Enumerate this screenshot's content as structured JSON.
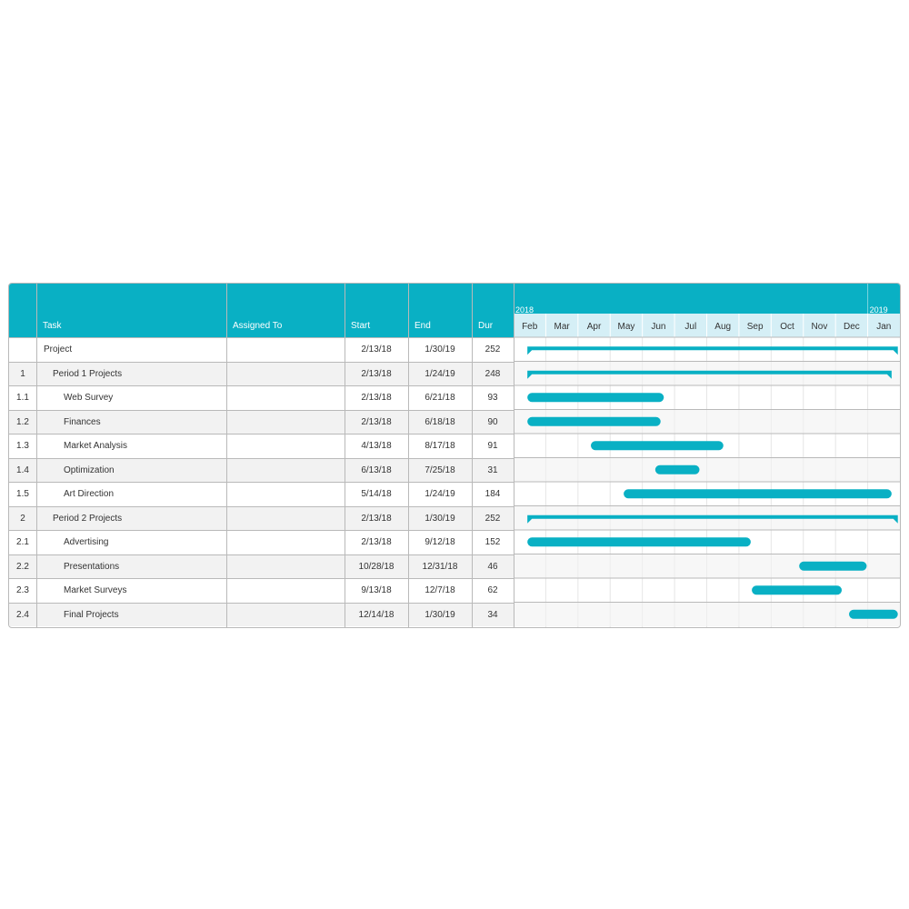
{
  "headers": {
    "num": "",
    "task": "Task",
    "assigned": "Assigned To",
    "start": "Start",
    "end": "End",
    "dur": "Dur"
  },
  "colors": {
    "accent": "#09b0c4",
    "month_band": "#d5eff6",
    "bar": "#09b0c4"
  },
  "chart_data": {
    "type": "gantt",
    "years": [
      {
        "label": "2018"
      },
      {
        "label": "2019"
      }
    ],
    "months": [
      "Feb",
      "Mar",
      "Apr",
      "May",
      "Jun",
      "Jul",
      "Aug",
      "Sep",
      "Oct",
      "Nov",
      "Dec",
      "Jan"
    ],
    "month_start_dates": [
      "2018-02-01",
      "2018-03-01",
      "2018-04-01",
      "2018-05-01",
      "2018-06-01",
      "2018-07-01",
      "2018-08-01",
      "2018-09-01",
      "2018-10-01",
      "2018-11-01",
      "2018-12-01",
      "2019-01-01"
    ],
    "axis_end_date": "2019-02-01",
    "tasks": [
      {
        "id": "",
        "name": "Project",
        "assigned": "",
        "start": "2/13/18",
        "end": "1/30/19",
        "dur": "252",
        "level": 0,
        "summary": true
      },
      {
        "id": "1",
        "name": "Period 1 Projects",
        "assigned": "",
        "start": "2/13/18",
        "end": "1/24/19",
        "dur": "248",
        "level": 1,
        "summary": true
      },
      {
        "id": "1.1",
        "name": "Web Survey",
        "assigned": "",
        "start": "2/13/18",
        "end": "6/21/18",
        "dur": "93",
        "level": 2,
        "summary": false
      },
      {
        "id": "1.2",
        "name": "Finances",
        "assigned": "",
        "start": "2/13/18",
        "end": "6/18/18",
        "dur": "90",
        "level": 2,
        "summary": false
      },
      {
        "id": "1.3",
        "name": "Market Analysis",
        "assigned": "",
        "start": "4/13/18",
        "end": "8/17/18",
        "dur": "91",
        "level": 2,
        "summary": false
      },
      {
        "id": "1.4",
        "name": "Optimization",
        "assigned": "",
        "start": "6/13/18",
        "end": "7/25/18",
        "dur": "31",
        "level": 2,
        "summary": false
      },
      {
        "id": "1.5",
        "name": "Art Direction",
        "assigned": "",
        "start": "5/14/18",
        "end": "1/24/19",
        "dur": "184",
        "level": 2,
        "summary": false
      },
      {
        "id": "2",
        "name": "Period 2 Projects",
        "assigned": "",
        "start": "2/13/18",
        "end": "1/30/19",
        "dur": "252",
        "level": 1,
        "summary": true
      },
      {
        "id": "2.1",
        "name": "Advertising",
        "assigned": "",
        "start": "2/13/18",
        "end": "9/12/18",
        "dur": "152",
        "level": 2,
        "summary": false
      },
      {
        "id": "2.2",
        "name": "Presentations",
        "assigned": "",
        "start": "10/28/18",
        "end": "12/31/18",
        "dur": "46",
        "level": 2,
        "summary": false
      },
      {
        "id": "2.3",
        "name": "Market Surveys",
        "assigned": "",
        "start": "9/13/18",
        "end": "12/7/18",
        "dur": "62",
        "level": 2,
        "summary": false
      },
      {
        "id": "2.4",
        "name": "Final Projects",
        "assigned": "",
        "start": "12/14/18",
        "end": "1/30/19",
        "dur": "34",
        "level": 2,
        "summary": false
      }
    ]
  }
}
